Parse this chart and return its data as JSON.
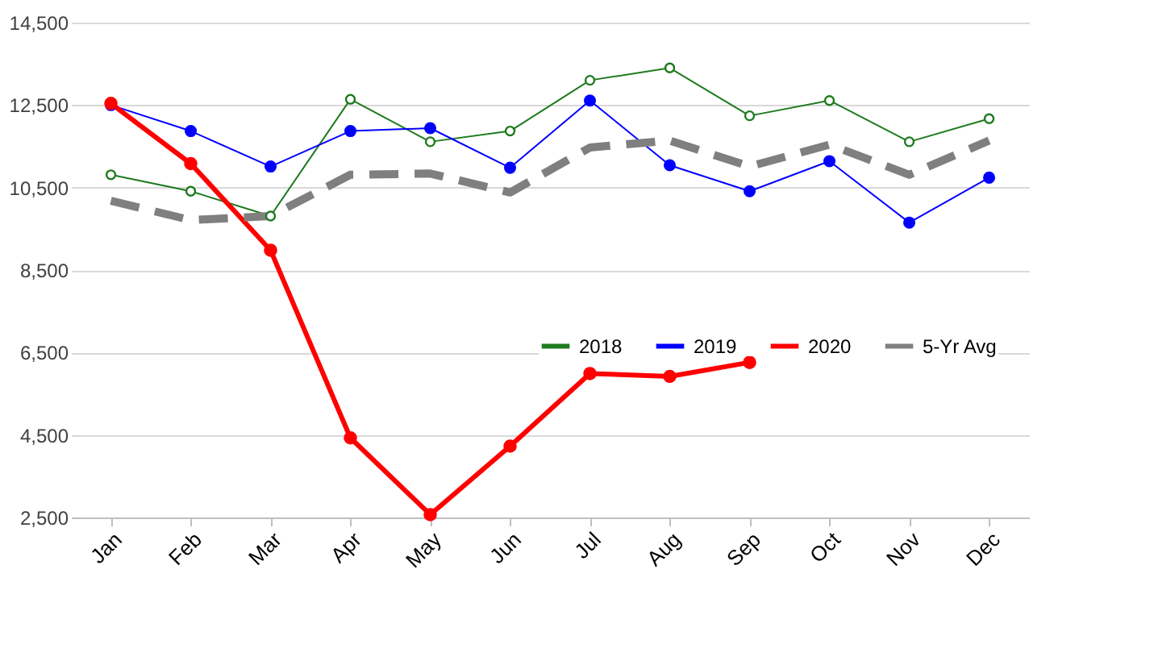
{
  "chart_data": {
    "type": "line",
    "categories": [
      "Jan",
      "Feb",
      "Mar",
      "Apr",
      "May",
      "Jun",
      "Jul",
      "Aug",
      "Sep",
      "Oct",
      "Nov",
      "Dec"
    ],
    "series": [
      {
        "name": "2018",
        "color": "#1e7b1e",
        "marker": "circle",
        "line_style": "solid",
        "values": [
          10810,
          10410,
          9810,
          12640,
          11610,
          11870,
          13100,
          13400,
          12240,
          12610,
          11610,
          12170
        ]
      },
      {
        "name": "2019",
        "color": "#0000ff",
        "marker": "circle",
        "line_style": "solid",
        "values": [
          12500,
          11870,
          11010,
          11870,
          11940,
          10980,
          12610,
          11040,
          10410,
          11140,
          9650,
          10740
        ]
      },
      {
        "name": "2020",
        "color": "#ff0000",
        "marker": "circle",
        "line_style": "solid",
        "values": [
          12540,
          11080,
          8980,
          4430,
          2570,
          4230,
          5990,
          5920,
          6260,
          null,
          null,
          null
        ]
      },
      {
        "name": "5-Yr Avg",
        "color": "#7f7f7f",
        "marker": "none",
        "line_style": "dashed",
        "values": [
          10180,
          9710,
          9810,
          10810,
          10840,
          10380,
          11470,
          11640,
          11010,
          11540,
          10810,
          11640
        ]
      }
    ],
    "ylim": [
      2500,
      14500
    ],
    "yticks": [
      {
        "value": 2500,
        "label": "2,500"
      },
      {
        "value": 4500,
        "label": "4,500"
      },
      {
        "value": 6500,
        "label": "6,500"
      },
      {
        "value": 8500,
        "label": "8,500"
      },
      {
        "value": 10500,
        "label": "10,500"
      },
      {
        "value": 12500,
        "label": "12,500"
      },
      {
        "value": 14500,
        "label": "14,500"
      }
    ],
    "grid": "y",
    "legend": "right"
  }
}
